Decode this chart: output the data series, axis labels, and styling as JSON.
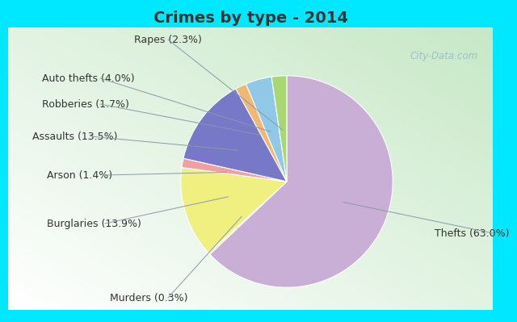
{
  "title": "Crimes by type - 2014",
  "labels": [
    "Thefts",
    "Murders",
    "Burglaries",
    "Arson",
    "Assaults",
    "Robberies",
    "Auto thefts",
    "Rapes"
  ],
  "values": [
    63.0,
    0.3,
    13.9,
    1.4,
    13.5,
    1.7,
    4.0,
    2.3
  ],
  "colors": [
    "#c9aed6",
    "#f0f0a0",
    "#f0f080",
    "#f0a0a0",
    "#7878c8",
    "#f0b870",
    "#90c8e8",
    "#a8d870"
  ],
  "bg_outer": "#00e8ff",
  "bg_inner": "#d0e8d8",
  "title_fontsize": 14,
  "label_fontsize": 9,
  "startangle": 90,
  "title_color": "#333333",
  "label_color": "#333333",
  "watermark": "City-Data.com",
  "label_texts": {
    "Thefts": "Thefts (63.0%)",
    "Burglaries": "Burglaries (13.9%)",
    "Assaults": "Assaults (13.5%)",
    "Rapes": "Rapes (2.3%)",
    "Auto thefts": "Auto thefts (4.0%)",
    "Robberies": "Robberies (1.7%)",
    "Arson": "Arson (1.4%)",
    "Murders": "Murders (0.3%)"
  }
}
